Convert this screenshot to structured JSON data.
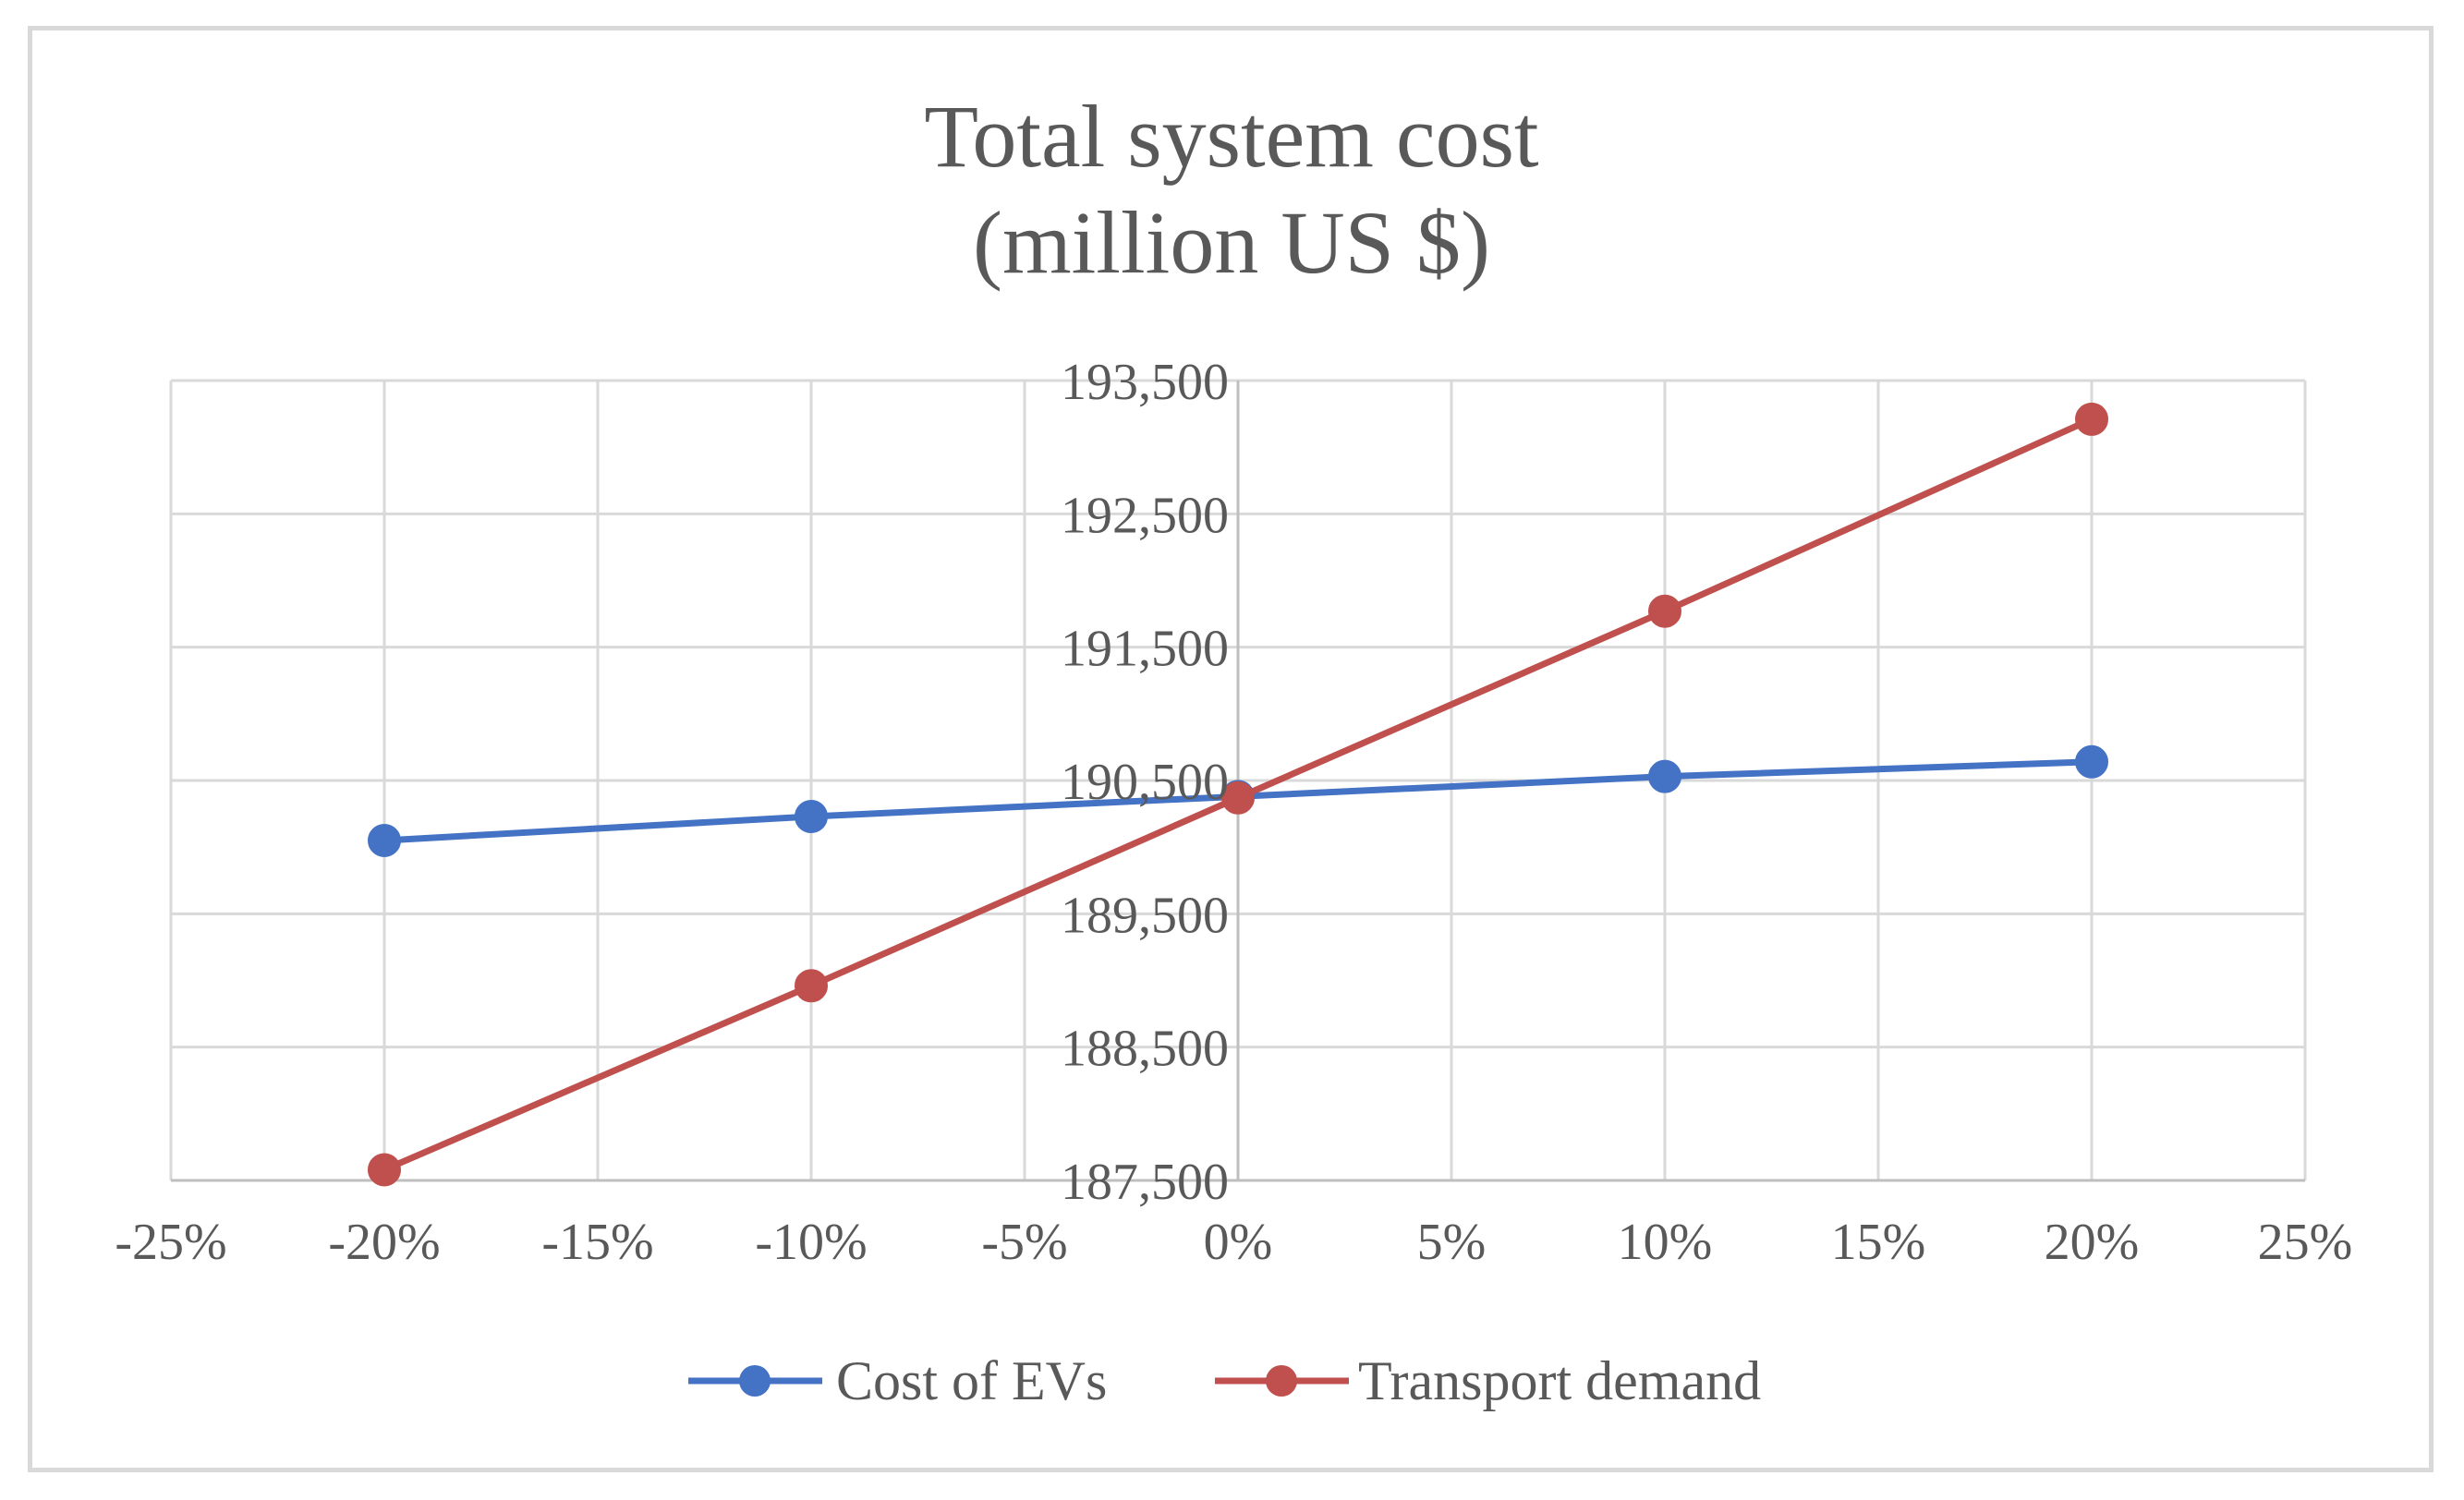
{
  "chart_data": {
    "type": "line",
    "title_lines": [
      "Total system cost",
      "(million US $)"
    ],
    "xlabel": "",
    "ylabel": "",
    "xlim": [
      -25,
      25
    ],
    "ylim": [
      187500,
      193500
    ],
    "x_ticks": [
      -25,
      -20,
      -15,
      -10,
      -5,
      0,
      5,
      10,
      15,
      20,
      25
    ],
    "x_tick_labels": [
      "-25%",
      "-20%",
      "-15%",
      "-10%",
      "-5%",
      "0%",
      "5%",
      "10%",
      "15%",
      "20%",
      "25%"
    ],
    "y_ticks": [
      187500,
      188500,
      189500,
      190500,
      191500,
      192500,
      193500
    ],
    "y_tick_labels": [
      "187,500",
      "188,500",
      "189,500",
      "190,500",
      "191,500",
      "192,500",
      "193,500"
    ],
    "grid": true,
    "legend_position": "bottom",
    "series": [
      {
        "name": "Cost of EVs",
        "color": "#4472c4",
        "x": [
          -20,
          -10,
          0,
          10,
          20
        ],
        "y": [
          190050,
          190230,
          190380,
          190530,
          190640
        ]
      },
      {
        "name": "Transport demand",
        "color": "#c0504d",
        "x": [
          -20,
          -10,
          0,
          10,
          20
        ],
        "y": [
          187580,
          188960,
          190370,
          191770,
          193210
        ]
      }
    ]
  }
}
